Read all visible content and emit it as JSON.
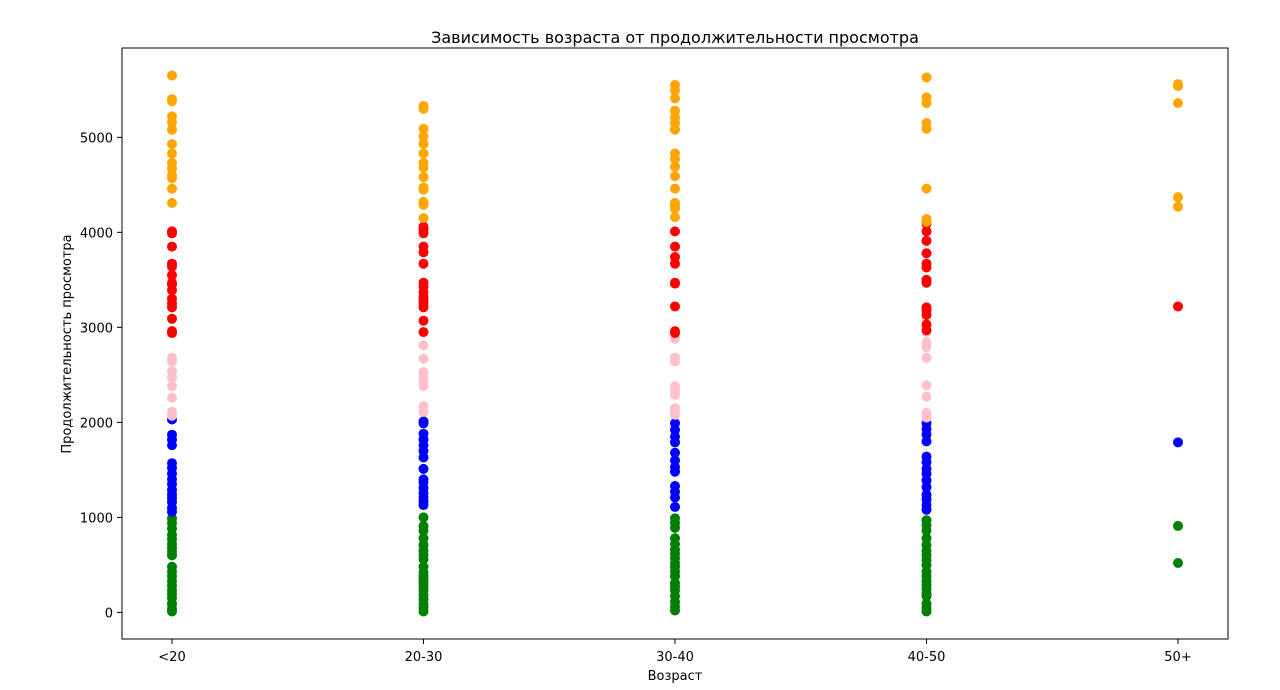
{
  "chart_data": {
    "type": "scatter",
    "title": "Зависимость возраста от продолжительности просмотра",
    "xlabel": "Возраст",
    "ylabel": "Продолжительность просмотра",
    "categories": [
      "<20",
      "20-30",
      "30-40",
      "40-50",
      "50+"
    ],
    "ylim": [
      -280,
      5940
    ],
    "yticks": [
      0,
      1000,
      2000,
      3000,
      4000,
      5000
    ],
    "ytick_labels": [
      "0",
      "1000",
      "2000",
      "3000",
      "4000",
      "5000"
    ],
    "grid": false,
    "legend": "none",
    "colors": {
      "orange": "#ffa500",
      "red": "#ff0000",
      "pink": "#ffc0cb",
      "blue": "#0000ff",
      "green": "#008000"
    },
    "points": {
      "<20": {
        "orange": [
          5650,
          5400,
          5380,
          5220,
          5160,
          5080,
          4930,
          4830,
          4730,
          4670,
          4600,
          4570,
          4460,
          4310
        ],
        "red": [
          4010,
          3990,
          3850,
          3670,
          3640,
          3550,
          3470,
          3450,
          3390,
          3300,
          3250,
          3210,
          3090,
          2960,
          2940
        ],
        "pink": [
          2680,
          2640,
          2540,
          2470,
          2380,
          2260,
          2110,
          2070
        ],
        "blue": [
          2030,
          1870,
          1820,
          1760,
          1570,
          1520,
          1460,
          1400,
          1350,
          1290,
          1240,
          1200,
          1160,
          1100,
          1060
        ],
        "green": [
          990,
          940,
          880,
          820,
          770,
          720,
          680,
          640,
          600,
          480,
          430,
          380,
          330,
          280,
          230,
          190,
          150,
          90,
          40,
          10
        ]
      },
      "20-30": {
        "orange": [
          5330,
          5300,
          5090,
          5010,
          4930,
          4830,
          4730,
          4680,
          4580,
          4470,
          4450,
          4320,
          4290,
          4150
        ],
        "red": [
          4060,
          4030,
          3990,
          3850,
          3790,
          3670,
          3470,
          3430,
          3370,
          3320,
          3280,
          3250,
          3210,
          3070,
          2950
        ],
        "pink": [
          2810,
          2670,
          2530,
          2480,
          2430,
          2380,
          2170,
          2110
        ],
        "blue": [
          2010,
          1990,
          1880,
          1820,
          1760,
          1700,
          1630,
          1510,
          1400,
          1370,
          1310,
          1260,
          1210,
          1170,
          1130
        ],
        "green": [
          1000,
          910,
          860,
          780,
          710,
          650,
          600,
          560,
          480,
          420,
          380,
          340,
          310,
          270,
          230,
          180,
          140,
          90,
          50,
          10
        ]
      },
      "30-40": {
        "orange": [
          5550,
          5490,
          5410,
          5280,
          5210,
          5150,
          5080,
          4830,
          4770,
          4690,
          4590,
          4460,
          4310,
          4280,
          4250,
          4160
        ],
        "red": [
          4010,
          3850,
          3740,
          3670,
          3470,
          3460,
          3220,
          2960,
          2940
        ],
        "pink": [
          2880,
          2680,
          2640,
          2380,
          2330,
          2290,
          2150,
          2110,
          2080
        ],
        "blue": [
          1990,
          1920,
          1850,
          1790,
          1680,
          1600,
          1530,
          1480,
          1330,
          1270,
          1210,
          1110
        ],
        "green": [
          990,
          940,
          890,
          780,
          720,
          660,
          620,
          570,
          520,
          480,
          430,
          380,
          310,
          270,
          230,
          170,
          110,
          60,
          20
        ]
      },
      "40-50": {
        "orange": [
          5630,
          5420,
          5360,
          5150,
          5090,
          4460,
          4140,
          4110
        ],
        "red": [
          4090,
          4010,
          3910,
          3780,
          3670,
          3630,
          3500,
          3470,
          3210,
          3180,
          3130,
          3030,
          2970
        ],
        "pink": [
          2950,
          2840,
          2790,
          2680,
          2390,
          2270,
          2100,
          2050
        ],
        "blue": [
          1990,
          1930,
          1870,
          1800,
          1640,
          1580,
          1510,
          1460,
          1390,
          1320,
          1240,
          1190,
          1130,
          1080
        ],
        "green": [
          970,
          920,
          860,
          780,
          710,
          650,
          600,
          550,
          500,
          430,
          380,
          330,
          290,
          250,
          200,
          170,
          90,
          50,
          10
        ]
      },
      "50+": {
        "orange": [
          5560,
          5540,
          5360,
          4370,
          4270
        ],
        "red": [
          3220
        ],
        "pink": [],
        "blue": [
          1790
        ],
        "green": [
          910,
          520
        ]
      }
    }
  }
}
